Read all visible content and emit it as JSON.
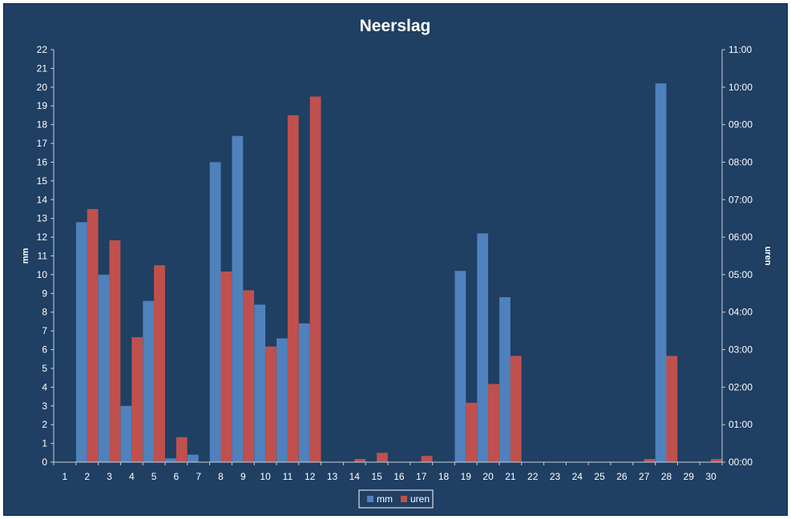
{
  "chart_data": {
    "type": "bar",
    "title": "Neerslag",
    "xlabel": "",
    "ylabel": "mm",
    "y2label": "uren",
    "categories": [
      "1",
      "2",
      "3",
      "4",
      "5",
      "6",
      "7",
      "8",
      "9",
      "10",
      "11",
      "12",
      "13",
      "14",
      "15",
      "16",
      "17",
      "18",
      "19",
      "20",
      "21",
      "22",
      "23",
      "24",
      "25",
      "26",
      "27",
      "28",
      "29",
      "30"
    ],
    "ylim": [
      0,
      22
    ],
    "y2lim": [
      0,
      660
    ],
    "y_ticks": [
      "0",
      "1",
      "2",
      "3",
      "4",
      "5",
      "6",
      "7",
      "8",
      "9",
      "10",
      "11",
      "12",
      "13",
      "14",
      "15",
      "16",
      "17",
      "18",
      "19",
      "20",
      "21",
      "22"
    ],
    "y2_ticks": [
      "00:00",
      "01:00",
      "02:00",
      "03:00",
      "04:00",
      "05:00",
      "06:00",
      "07:00",
      "08:00",
      "09:00",
      "10:00",
      "11:00"
    ],
    "series": [
      {
        "name": "mm",
        "axis": "left",
        "color": "#4f81bd",
        "values": [
          0,
          12.8,
          10.0,
          3.0,
          8.6,
          0.2,
          0.4,
          16.0,
          17.4,
          8.4,
          6.6,
          7.4,
          0,
          0,
          0,
          0,
          0,
          0,
          10.2,
          12.2,
          8.8,
          0,
          0,
          0,
          0,
          0,
          0,
          20.2,
          0,
          0
        ]
      },
      {
        "name": "uren",
        "axis": "right",
        "unit": "minutes",
        "color": "#c0504d",
        "values": [
          0,
          405,
          355,
          200,
          315,
          40,
          0,
          305,
          275,
          185,
          555,
          585,
          0,
          5,
          15,
          0,
          10,
          0,
          95,
          125,
          170,
          0,
          0,
          0,
          0,
          0,
          5,
          170,
          0,
          5
        ]
      }
    ],
    "legend": {
      "position": "bottom",
      "entries": [
        "mm",
        "uren"
      ]
    },
    "grid": false
  }
}
